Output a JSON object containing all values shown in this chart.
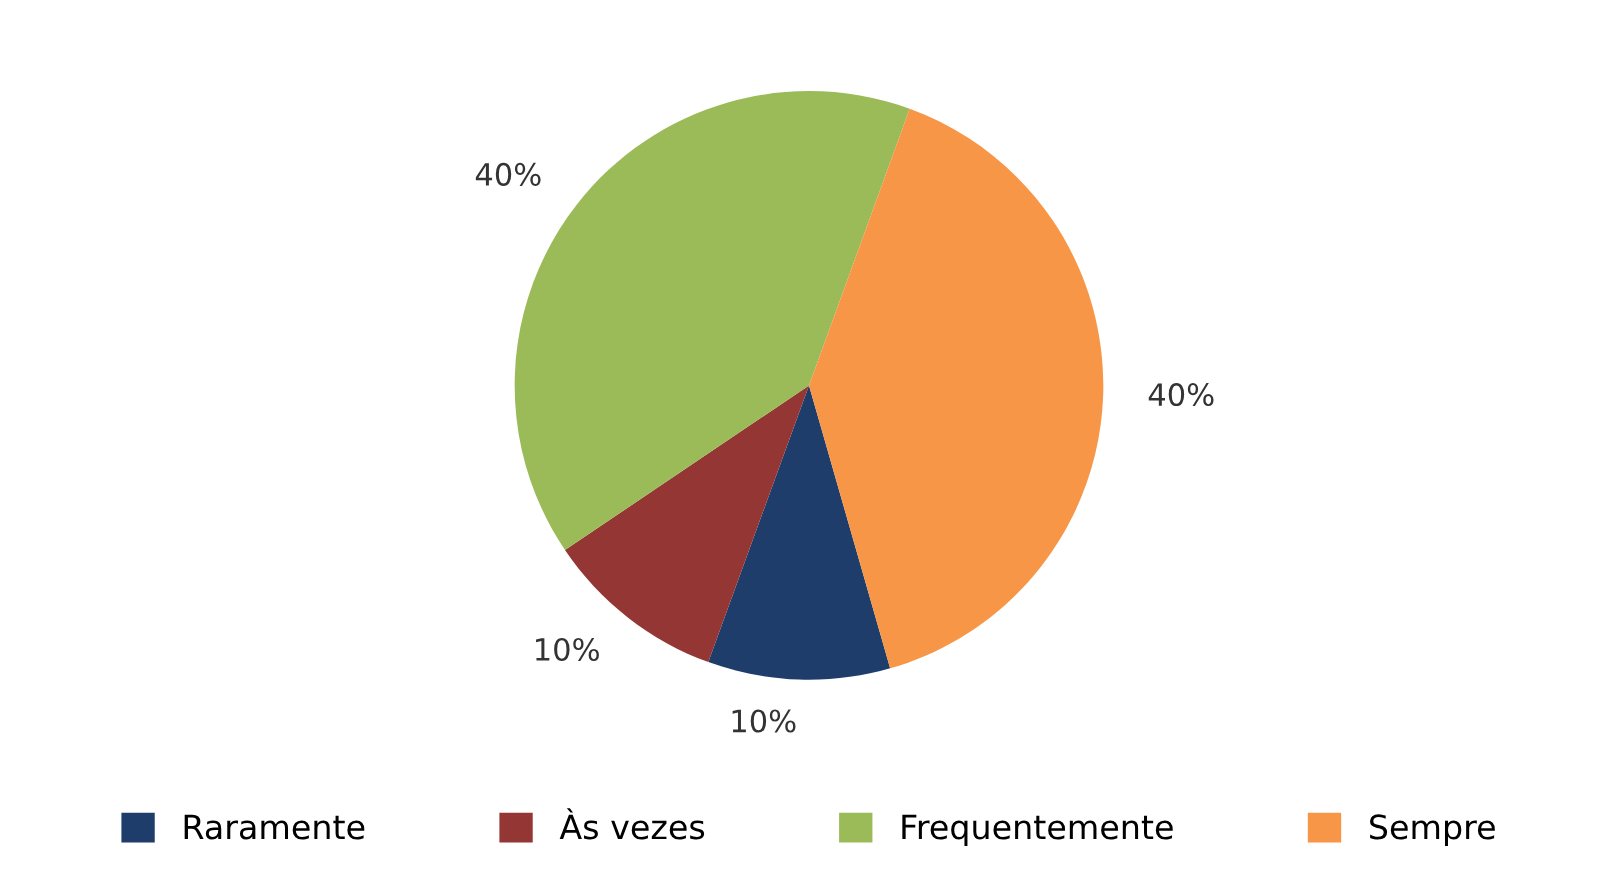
{
  "chart_data": {
    "type": "pie",
    "categories": [
      "Raramente",
      "Às vezes",
      "Frequentemente",
      "Sempre"
    ],
    "values": [
      10,
      10,
      40,
      40
    ],
    "colors": [
      "#1f3d6b",
      "#943634",
      "#9bbb59",
      "#f79646"
    ],
    "value_labels": [
      "10%",
      "10%",
      "40%",
      "40%"
    ],
    "legend": "bottom"
  }
}
